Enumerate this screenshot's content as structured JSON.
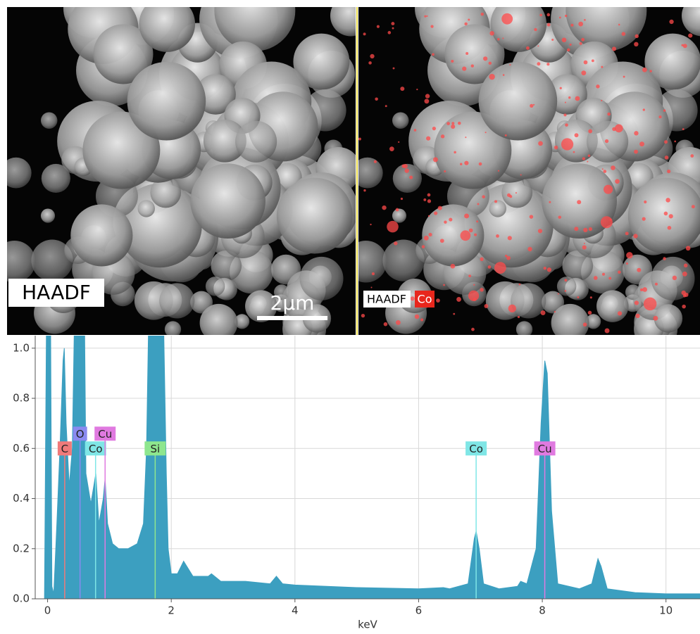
{
  "images": {
    "left_label": "HAADF",
    "scale_bar": "2μm",
    "right_labels": [
      "HAADF",
      "Co"
    ]
  },
  "chart_data": {
    "type": "area",
    "x_label": "keV",
    "color": "#3c9fc0",
    "grid": true,
    "xlim": [
      -0.2,
      10.55
    ],
    "ylim": [
      0,
      1.05
    ],
    "xticks": [
      0,
      2,
      4,
      6,
      8,
      10
    ],
    "yticks": [
      {
        "value": 0,
        "label": "0.0"
      },
      0.2,
      0.4,
      0.6,
      0.8,
      {
        "value": 1,
        "label": "1.0"
      }
    ],
    "x": [
      -0.2,
      -0.05,
      -0.02,
      0.05,
      0.07,
      0.1,
      0.15,
      0.2,
      0.25,
      0.27,
      0.3,
      0.35,
      0.4,
      0.43,
      0.6,
      0.62,
      0.7,
      0.78,
      0.83,
      0.9,
      0.93,
      0.97,
      1.05,
      1.15,
      1.3,
      1.45,
      1.55,
      1.6,
      1.63,
      1.88,
      1.92,
      1.95,
      2.0,
      2.1,
      2.2,
      2.25,
      2.35,
      2.6,
      2.65,
      2.8,
      3.2,
      3.6,
      3.7,
      3.8,
      4.0,
      5.0,
      6.0,
      6.4,
      6.5,
      6.8,
      6.9,
      6.93,
      6.98,
      7.05,
      7.3,
      7.6,
      7.65,
      7.75,
      7.9,
      7.98,
      8.04,
      8.08,
      8.15,
      8.25,
      8.6,
      8.8,
      8.9,
      8.95,
      9.05,
      9.5,
      10.0,
      10.55
    ],
    "values": [
      0,
      0,
      1.05,
      1.05,
      0.05,
      0.02,
      0.3,
      0.6,
      0.95,
      1.0,
      0.7,
      0.45,
      0.6,
      1.05,
      1.05,
      0.5,
      0.38,
      0.5,
      0.3,
      0.4,
      0.48,
      0.3,
      0.22,
      0.2,
      0.2,
      0.22,
      0.3,
      0.6,
      1.05,
      1.05,
      0.5,
      0.2,
      0.1,
      0.1,
      0.15,
      0.13,
      0.09,
      0.09,
      0.1,
      0.07,
      0.07,
      0.06,
      0.09,
      0.06,
      0.055,
      0.045,
      0.04,
      0.045,
      0.04,
      0.06,
      0.24,
      0.27,
      0.2,
      0.06,
      0.04,
      0.05,
      0.07,
      0.06,
      0.2,
      0.7,
      0.95,
      0.9,
      0.35,
      0.06,
      0.04,
      0.06,
      0.16,
      0.13,
      0.04,
      0.025,
      0.02,
      0.02
    ],
    "peaks": [
      {
        "label": "C",
        "x": 0.277,
        "color": "#f07a7a"
      },
      {
        "label": "O",
        "x": 0.525,
        "color": "#8a8af0"
      },
      {
        "label": "Co",
        "x": 0.776,
        "color": "#7fe6e6"
      },
      {
        "label": "Cu",
        "x": 0.93,
        "color": "#e07ae0"
      },
      {
        "label": "Si",
        "x": 1.74,
        "color": "#8ee68e"
      },
      {
        "label": "Co",
        "x": 6.93,
        "color": "#7fe6e6"
      },
      {
        "label": "Cu",
        "x": 8.04,
        "color": "#e07ae0"
      }
    ]
  }
}
